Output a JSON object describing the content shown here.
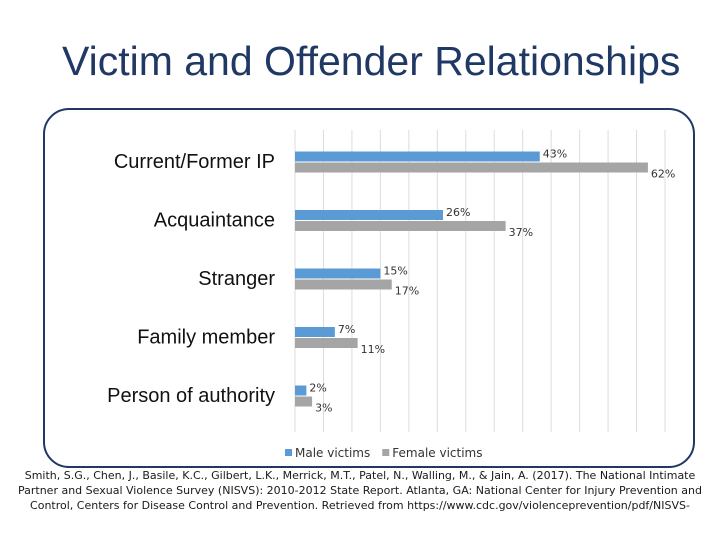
{
  "slide": {
    "title": "Victim and Offender Relationships",
    "citation": "Smith, S.G., Chen, J., Basile, K.C., Gilbert, L.K., Merrick, M.T., Patel, N., Walling, M., & Jain, A. (2017). The National Intimate\nPartner and Sexual Violence Survey (NISVS): 2010-2012 State Report. Atlanta, GA: National Center for Injury Prevention and\nControl, Centers for Disease Control and Prevention. Retrieved from https://www.cdc.gov/violenceprevention/pdf/NISVS-"
  },
  "chart_data": {
    "type": "bar",
    "orientation": "horizontal",
    "categories": [
      "Current/Former IP",
      "Acquaintance",
      "Stranger",
      "Family member",
      "Person of authority"
    ],
    "series": [
      {
        "name": "Male victims",
        "values": [
          43,
          26,
          15,
          7,
          2
        ],
        "labels": [
          "43%",
          "26%",
          "15%",
          "7%",
          "2%"
        ],
        "color": "#5b9bd5"
      },
      {
        "name": "Female victims",
        "values": [
          62,
          37,
          17,
          11,
          3
        ],
        "labels": [
          "62%",
          "37%",
          "17%",
          "11%",
          "3%"
        ],
        "color": "#a5a5a5"
      }
    ],
    "xlim": [
      0,
      65
    ],
    "grid": true,
    "legend": "bottom-center",
    "title": "",
    "xlabel": "",
    "ylabel": ""
  }
}
